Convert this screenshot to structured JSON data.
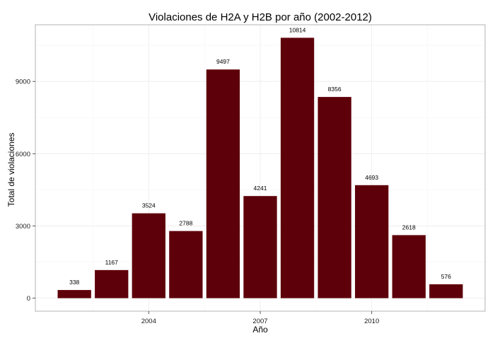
{
  "chart_data": {
    "type": "bar",
    "title": "Violaciones de H2A y H2B por año (2002-2012)",
    "xlabel": "Año",
    "ylabel": "Total de violaciones",
    "categories": [
      2002,
      2003,
      2004,
      2005,
      2006,
      2007,
      2008,
      2009,
      2010,
      2011,
      2012
    ],
    "values": [
      338,
      1167,
      3524,
      2788,
      9497,
      4241,
      10814,
      8356,
      4693,
      2618,
      576
    ],
    "value_labels": [
      "338",
      "1167",
      "3524",
      "2788",
      "9497",
      "4241",
      "10814",
      "8356",
      "4693",
      "2618",
      "576"
    ],
    "x_ticks": [
      2004,
      2007,
      2010
    ],
    "x_tick_labels": [
      "2004",
      "2007",
      "2010"
    ],
    "y_ticks": [
      0,
      3000,
      6000,
      9000
    ],
    "y_tick_labels": [
      "0",
      "3000",
      "6000",
      "9000"
    ],
    "xlim": [
      2000.95,
      2013.05
    ],
    "ylim": [
      -540.7,
      11354.7
    ],
    "grid": true,
    "legend": "none",
    "colors": {
      "bar": "#5e000a",
      "grid": "#ebebeb",
      "panel_border": "#b3b3b3",
      "text": "#000000",
      "tick_text": "#1a1a1a"
    }
  }
}
